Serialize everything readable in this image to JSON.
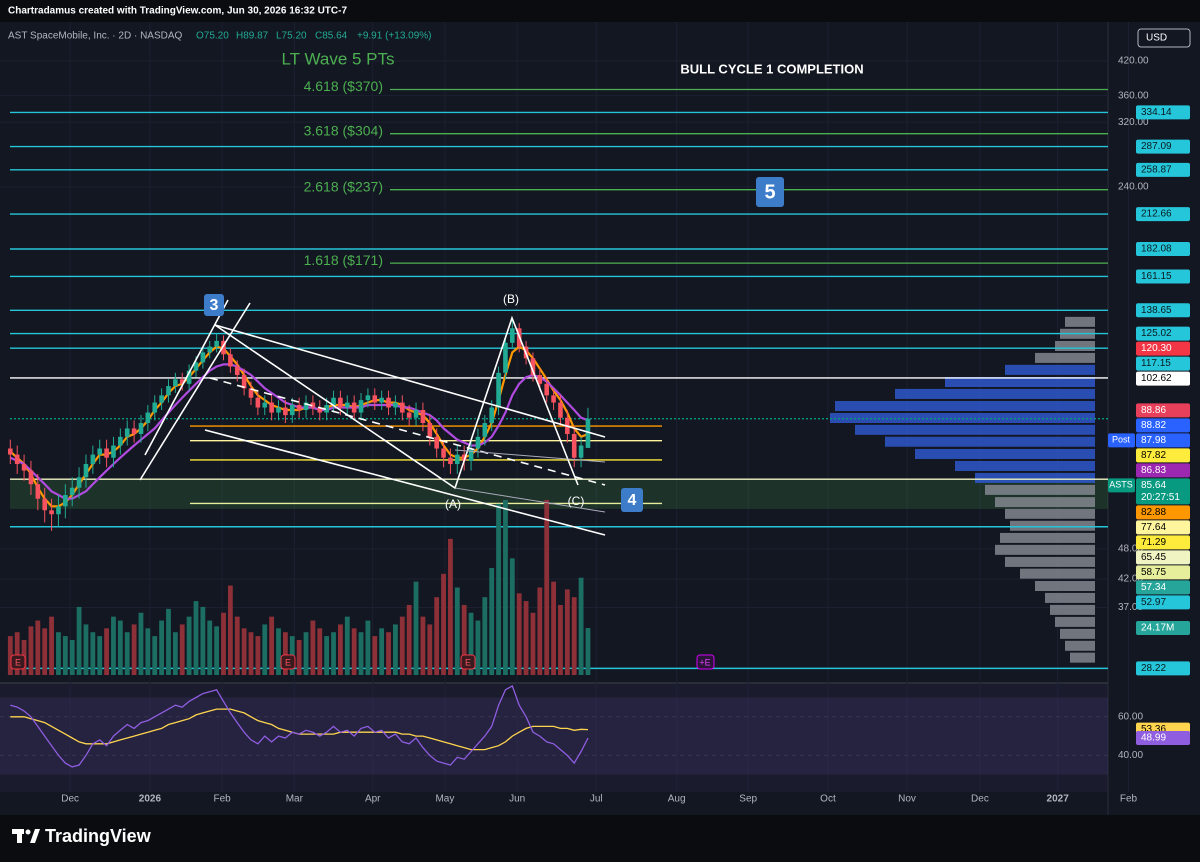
{
  "header": {
    "credit": "Chartradamus created with TradingView.com, Jun 30, 2026 16:32 UTC-7",
    "symbol": "AST SpaceMobile, Inc. · 2D · NASDAQ",
    "open": "O75.20",
    "high": "H89.87",
    "low": "L75.20",
    "close": "C85.64",
    "change": "+9.91 (+13.09%)",
    "currency": "USD",
    "brand": "TradingView"
  },
  "chart_data": {
    "type": "candlestick",
    "title": "LT Wave 5 PTs",
    "subtitle": "BULL CYCLE 1 COMPLETION",
    "waves": {
      "w3": "3",
      "w4": "4",
      "w5": "5",
      "a": "(A)",
      "b": "(B)",
      "c": "(C)"
    },
    "earnings": [
      "E",
      "E",
      "E",
      "+E"
    ],
    "log_scale": true,
    "xlim": [
      -1.5,
      173
    ],
    "xticks": [
      {
        "value": 8.7,
        "label": "Dec"
      },
      {
        "value": 20.3,
        "label": "2026"
      },
      {
        "value": 30.8,
        "label": "Feb"
      },
      {
        "value": 41.3,
        "label": "Mar"
      },
      {
        "value": 52.7,
        "label": "Apr"
      },
      {
        "value": 63.2,
        "label": "May"
      },
      {
        "value": 73.7,
        "label": "Jun"
      },
      {
        "value": 85.2,
        "label": "Jul"
      },
      {
        "value": 96.9,
        "label": "Aug"
      },
      {
        "value": 107.3,
        "label": "Sep"
      },
      {
        "value": 118.9,
        "label": "Oct"
      },
      {
        "value": 130.4,
        "label": "Nov"
      },
      {
        "value": 141,
        "label": "Dec"
      },
      {
        "value": 152.3,
        "label": "2027"
      },
      {
        "value": 162.6,
        "label": "Feb"
      }
    ],
    "ylim": [
      26.8,
      499.5
    ],
    "yticks": [
      {
        "value": 420,
        "label": "420.00"
      },
      {
        "value": 360,
        "label": "360.00"
      },
      {
        "value": 320,
        "label": "320.00"
      },
      {
        "value": 240,
        "label": "240.00"
      },
      {
        "value": 48,
        "label": "48.00"
      },
      {
        "value": 42,
        "label": "42.00"
      },
      {
        "value": 37,
        "label": "37.00"
      }
    ],
    "up_color": "#22ab94",
    "down_color": "#f7525f",
    "candles": {
      "open": [
        75,
        73,
        70,
        68,
        64,
        60,
        57,
        56,
        58,
        61,
        63,
        66,
        70,
        73,
        75,
        72,
        76,
        79,
        82,
        80,
        84,
        88,
        92,
        95,
        99,
        102,
        100,
        106,
        110,
        115,
        118,
        121,
        114,
        108,
        104,
        98,
        94,
        90,
        92,
        88,
        90,
        87,
        91,
        89,
        92,
        90,
        88,
        91,
        94,
        90,
        92,
        88,
        93,
        95,
        92,
        94,
        90,
        92,
        88,
        86,
        89,
        84,
        79,
        75,
        72,
        70,
        73,
        71,
        75,
        79,
        84,
        90,
        105,
        120,
        128,
        118,
        112,
        104,
        100,
        95,
        92,
        86,
        80,
        72,
        75.2
      ],
      "high": [
        78,
        76,
        73,
        71,
        67,
        63,
        60,
        61,
        64,
        66,
        69,
        73,
        76,
        78,
        78,
        79,
        82,
        85,
        85,
        87,
        91,
        95,
        98,
        102,
        105,
        105,
        109,
        113,
        118,
        121,
        125,
        124,
        117,
        111,
        107,
        101,
        97,
        95,
        95,
        93,
        93,
        94,
        94,
        95,
        95,
        93,
        94,
        97,
        97,
        95,
        95,
        96,
        98,
        98,
        97,
        97,
        95,
        95,
        91,
        92,
        92,
        87,
        82,
        78,
        75,
        76,
        76,
        78,
        82,
        87,
        93,
        108,
        123,
        133,
        131,
        121,
        115,
        107,
        103,
        98,
        95,
        89,
        83,
        79,
        89.87
      ],
      "low": [
        70,
        67,
        65,
        61,
        57,
        54,
        52,
        53,
        55,
        58,
        60,
        63,
        67,
        70,
        69,
        69,
        73,
        76,
        77,
        77,
        81,
        85,
        89,
        92,
        96,
        97,
        97,
        103,
        107,
        112,
        115,
        111,
        105,
        101,
        95,
        91,
        87,
        87,
        85,
        85,
        84,
        84,
        86,
        86,
        87,
        85,
        85,
        88,
        87,
        87,
        85,
        85,
        90,
        89,
        89,
        87,
        87,
        85,
        83,
        83,
        81,
        76,
        72,
        69,
        67,
        67,
        68,
        68,
        72,
        76,
        81,
        87,
        102,
        117,
        115,
        109,
        101,
        97,
        92,
        89,
        83,
        77,
        69,
        69,
        75.2
      ],
      "close": [
        73,
        70,
        68,
        64,
        60,
        57,
        56,
        58,
        61,
        63,
        66,
        70,
        73,
        75,
        72,
        76,
        79,
        82,
        80,
        84,
        88,
        92,
        95,
        99,
        102,
        100,
        106,
        110,
        115,
        118,
        121,
        114,
        108,
        104,
        98,
        94,
        90,
        92,
        88,
        90,
        87,
        91,
        89,
        92,
        90,
        88,
        91,
        94,
        90,
        92,
        88,
        93,
        95,
        92,
        94,
        90,
        92,
        88,
        86,
        89,
        84,
        79,
        75,
        72,
        70,
        73,
        71,
        75,
        79,
        84,
        90,
        105,
        120,
        128,
        118,
        112,
        104,
        100,
        95,
        92,
        86,
        80,
        72,
        76,
        85.64
      ]
    },
    "moving_averages": [
      {
        "color": "#ff9800",
        "values": [
          74,
          72,
          70,
          67,
          63,
          60,
          58,
          58,
          59,
          61,
          64,
          67,
          70,
          73,
          73,
          74,
          76,
          79,
          80,
          82,
          85,
          89,
          92,
          96,
          99,
          100,
          103,
          107,
          111,
          115,
          118,
          117,
          113,
          109,
          104,
          99,
          95,
          93,
          91,
          90,
          89,
          89,
          89,
          90,
          90,
          89,
          90,
          91,
          91,
          91,
          90,
          91,
          92,
          93,
          93,
          92,
          92,
          91,
          89,
          88,
          87,
          84,
          80,
          76,
          73,
          72,
          72,
          73,
          75,
          79,
          84,
          93,
          104,
          115,
          118,
          116,
          112,
          107,
          102,
          97,
          93,
          88,
          82,
          79,
          80
        ]
      },
      {
        "color": "#b04be0",
        "values": [
          72,
          71,
          70,
          68,
          66,
          64,
          62,
          61,
          60,
          60,
          61,
          62,
          64,
          66,
          68,
          70,
          72,
          74,
          76,
          78,
          80,
          82,
          85,
          88,
          91,
          94,
          97,
          100,
          103,
          106,
          108,
          109,
          109,
          108,
          106,
          104,
          101,
          98,
          96,
          94,
          92,
          91,
          90,
          90,
          90,
          89,
          89,
          90,
          90,
          90,
          90,
          90,
          91,
          91,
          91,
          91,
          91,
          90,
          90,
          89,
          88,
          87,
          85,
          82,
          80,
          78,
          77,
          76,
          76,
          77,
          79,
          83,
          88,
          95,
          100,
          103,
          104,
          103,
          101,
          98,
          95,
          92,
          89,
          86,
          85
        ]
      }
    ],
    "volume": {
      "up_color": "#1c6e63",
      "down_color": "#8e3038",
      "last_label": "24.17M",
      "values": [
        20,
        22,
        18,
        25,
        28,
        24,
        30,
        22,
        20,
        18,
        35,
        26,
        22,
        20,
        24,
        30,
        28,
        22,
        26,
        32,
        24,
        20,
        28,
        34,
        22,
        26,
        30,
        38,
        35,
        28,
        25,
        32,
        46,
        30,
        24,
        22,
        20,
        26,
        30,
        24,
        22,
        20,
        18,
        22,
        28,
        24,
        20,
        22,
        26,
        30,
        24,
        22,
        28,
        20,
        24,
        22,
        26,
        30,
        36,
        48,
        30,
        26,
        40,
        52,
        70,
        45,
        36,
        32,
        28,
        40,
        55,
        88,
        90,
        60,
        42,
        38,
        32,
        45,
        90,
        48,
        36,
        44,
        40,
        50,
        24.17
      ]
    },
    "fib_color": "#4caf50",
    "fib_targets": [
      {
        "value": 370,
        "label": "4.618 ($370)"
      },
      {
        "value": 304,
        "label": "3.618 ($304)"
      },
      {
        "value": 237,
        "label": "2.618 ($237)"
      },
      {
        "value": 171,
        "label": "1.618 ($171)"
      }
    ],
    "levels": [
      {
        "value": 334.14,
        "label": "334.14",
        "color": "#26c6da",
        "text_color": "#0b1a1f",
        "line": "full"
      },
      {
        "value": 287.09,
        "label": "287.09",
        "color": "#26c6da",
        "text_color": "#0b1a1f",
        "line": "full"
      },
      {
        "value": 258.87,
        "label": "258.87",
        "color": "#26c6da",
        "text_color": "#0b1a1f",
        "line": "full"
      },
      {
        "value": 212.66,
        "label": "212.66",
        "color": "#26c6da",
        "text_color": "#0b1a1f",
        "line": "full"
      },
      {
        "value": 182.08,
        "label": "182.08",
        "color": "#26c6da",
        "text_color": "#0b1a1f",
        "line": "full"
      },
      {
        "value": 161.15,
        "label": "161.15",
        "color": "#26c6da",
        "text_color": "#0b1a1f",
        "line": "full"
      },
      {
        "value": 138.65,
        "label": "138.65",
        "color": "#26c6da",
        "text_color": "#0b1a1f",
        "line": "full"
      },
      {
        "value": 125.02,
        "label": "125.02",
        "color": "#26c6da",
        "text_color": "#0b1a1f",
        "line": "full"
      },
      {
        "value": 120.3,
        "label": "120.30",
        "color": "#f23645",
        "text_color": "#ffffff",
        "line": "none"
      },
      {
        "value": 117.15,
        "label": "117.15",
        "color": "#26c6da",
        "text_color": "#0b1a1f",
        "line": "full"
      },
      {
        "value": 102.62,
        "label": "102.62",
        "color": "#ffffff",
        "text_color": "#000000",
        "line": "full"
      },
      {
        "value": 88.86,
        "label": "88.86",
        "color": "#e8405a",
        "text_color": "#ffffff",
        "line": "none"
      },
      {
        "value": 88.82,
        "label": "88.82",
        "color": "#2962ff",
        "text_color": "#ffffff",
        "line": "none"
      },
      {
        "value": 87.98,
        "label": "87.98",
        "color": "#2962ff",
        "text_color": "#ffffff",
        "line": "none",
        "tag": "Post"
      },
      {
        "value": 87.82,
        "label": "87.82",
        "color": "#ffeb3b",
        "text_color": "#000000",
        "line": "none"
      },
      {
        "value": 86.83,
        "label": "86.83",
        "color": "#9c27b0",
        "text_color": "#ffffff",
        "line": "none"
      },
      {
        "value": 85.64,
        "label": "85.64",
        "color": "#089981",
        "text_color": "#ffffff",
        "line": "full",
        "tag": "ASTS",
        "sub": "20:27:51"
      },
      {
        "value": 82.88,
        "label": "82.88",
        "color": "#ff9800",
        "text_color": "#000000",
        "line": "short"
      },
      {
        "value": 77.64,
        "label": "77.64",
        "color": "#fff59d",
        "text_color": "#000000",
        "line": "short"
      },
      {
        "value": 71.29,
        "label": "71.29",
        "color": "#ffeb3b",
        "text_color": "#000000",
        "line": "short"
      },
      {
        "value": 65.45,
        "label": "65.45",
        "color": "#f0f4c3",
        "text_color": "#000000",
        "line": "full"
      },
      {
        "value": 58.75,
        "label": "58.75",
        "color": "#e6ee9c",
        "text_color": "#000000",
        "line": "short"
      },
      {
        "value": 57.34,
        "label": "57.34",
        "color": "#26a69a",
        "text_color": "#ffffff",
        "line": "none"
      },
      {
        "value": 52.97,
        "label": "52.97",
        "color": "#26c6da",
        "text_color": "#0b1a1f",
        "line": "full"
      },
      {
        "value": 28.22,
        "label": "28.22",
        "color": "#26c6da",
        "text_color": "#0b1a1f",
        "line": "full"
      }
    ],
    "profile": {
      "prices": [
        131.7,
        124.9,
        118.3,
        112.2,
        106.4,
        100.8,
        95.6,
        90.6,
        85.9,
        81.5,
        77.3,
        73.2,
        69.4,
        65.8,
        62.4,
        59.1,
        56.1,
        53.2,
        50.4,
        47.8,
        45.3,
        43,
        40.7,
        38.6,
        36.6,
        34.7,
        32.9,
        31.2,
        29.6
      ],
      "values": [
        30,
        35,
        40,
        60,
        90,
        150,
        200,
        260,
        265,
        240,
        210,
        180,
        140,
        120,
        110,
        100,
        90,
        85,
        95,
        100,
        90,
        75,
        60,
        50,
        45,
        40,
        35,
        30,
        25
      ],
      "colors": [
        "#8a8d96",
        "#8a8d96",
        "#8a8d96",
        "#8a8d96",
        "#2f5bd6",
        "#2f5bd6",
        "#2f5bd6",
        "#2f5bd6",
        "#2f5bd6",
        "#2f5bd6",
        "#2f5bd6",
        "#2f5bd6",
        "#2f5bd6",
        "#2f5bd6",
        "#8a8d96",
        "#8a8d96",
        "#8a8d96",
        "#8a8d96",
        "#8a8d96",
        "#8a8d96",
        "#8a8d96",
        "#8a8d96",
        "#8a8d96",
        "#8a8d96",
        "#8a8d96",
        "#8a8d96",
        "#8a8d96",
        "#8a8d96",
        "#8a8d96"
      ]
    },
    "rsi": {
      "ylim": [
        21,
        77
      ],
      "yticks": [
        {
          "value": 60,
          "label": "60.00"
        },
        {
          "value": 40,
          "label": "40.00"
        }
      ],
      "band": [
        30,
        70
      ],
      "series": [
        {
          "color": "#ffd54f",
          "values": [
            60,
            60,
            60,
            59,
            58,
            57,
            55,
            53,
            51,
            49,
            47,
            46,
            46,
            46,
            46,
            47,
            48,
            49,
            50,
            51,
            52,
            53,
            54,
            56,
            57,
            58,
            59,
            61,
            62,
            63,
            64,
            64,
            64,
            63,
            62,
            60,
            58,
            57,
            56,
            54,
            53,
            52,
            51,
            51,
            51,
            51,
            51,
            51,
            52,
            52,
            52,
            52,
            52,
            52,
            52,
            52,
            52,
            51,
            51,
            50,
            50,
            49,
            48,
            47,
            46,
            45,
            44,
            43,
            43,
            43,
            44,
            45,
            47,
            50,
            52,
            54,
            55,
            55,
            55,
            55,
            54,
            54,
            53,
            53.5,
            53.36
          ]
        },
        {
          "color": "#8f5de0",
          "values": [
            66,
            65,
            63,
            60,
            55,
            50,
            45,
            40,
            36,
            34,
            35,
            40,
            46,
            48,
            45,
            50,
            53,
            56,
            54,
            57,
            58,
            60,
            62,
            64,
            66,
            65,
            68,
            70,
            72,
            73,
            74,
            68,
            62,
            57,
            52,
            48,
            46,
            50,
            47,
            50,
            49,
            52,
            51,
            53,
            52,
            50,
            52,
            55,
            52,
            53,
            50,
            54,
            55,
            52,
            53,
            49,
            51,
            47,
            46,
            49,
            44,
            40,
            37,
            36,
            35,
            39,
            38,
            42,
            46,
            50,
            55,
            66,
            74,
            76,
            66,
            60,
            52,
            50,
            47,
            46,
            43,
            40,
            36,
            42,
            48.99
          ]
        }
      ]
    }
  }
}
